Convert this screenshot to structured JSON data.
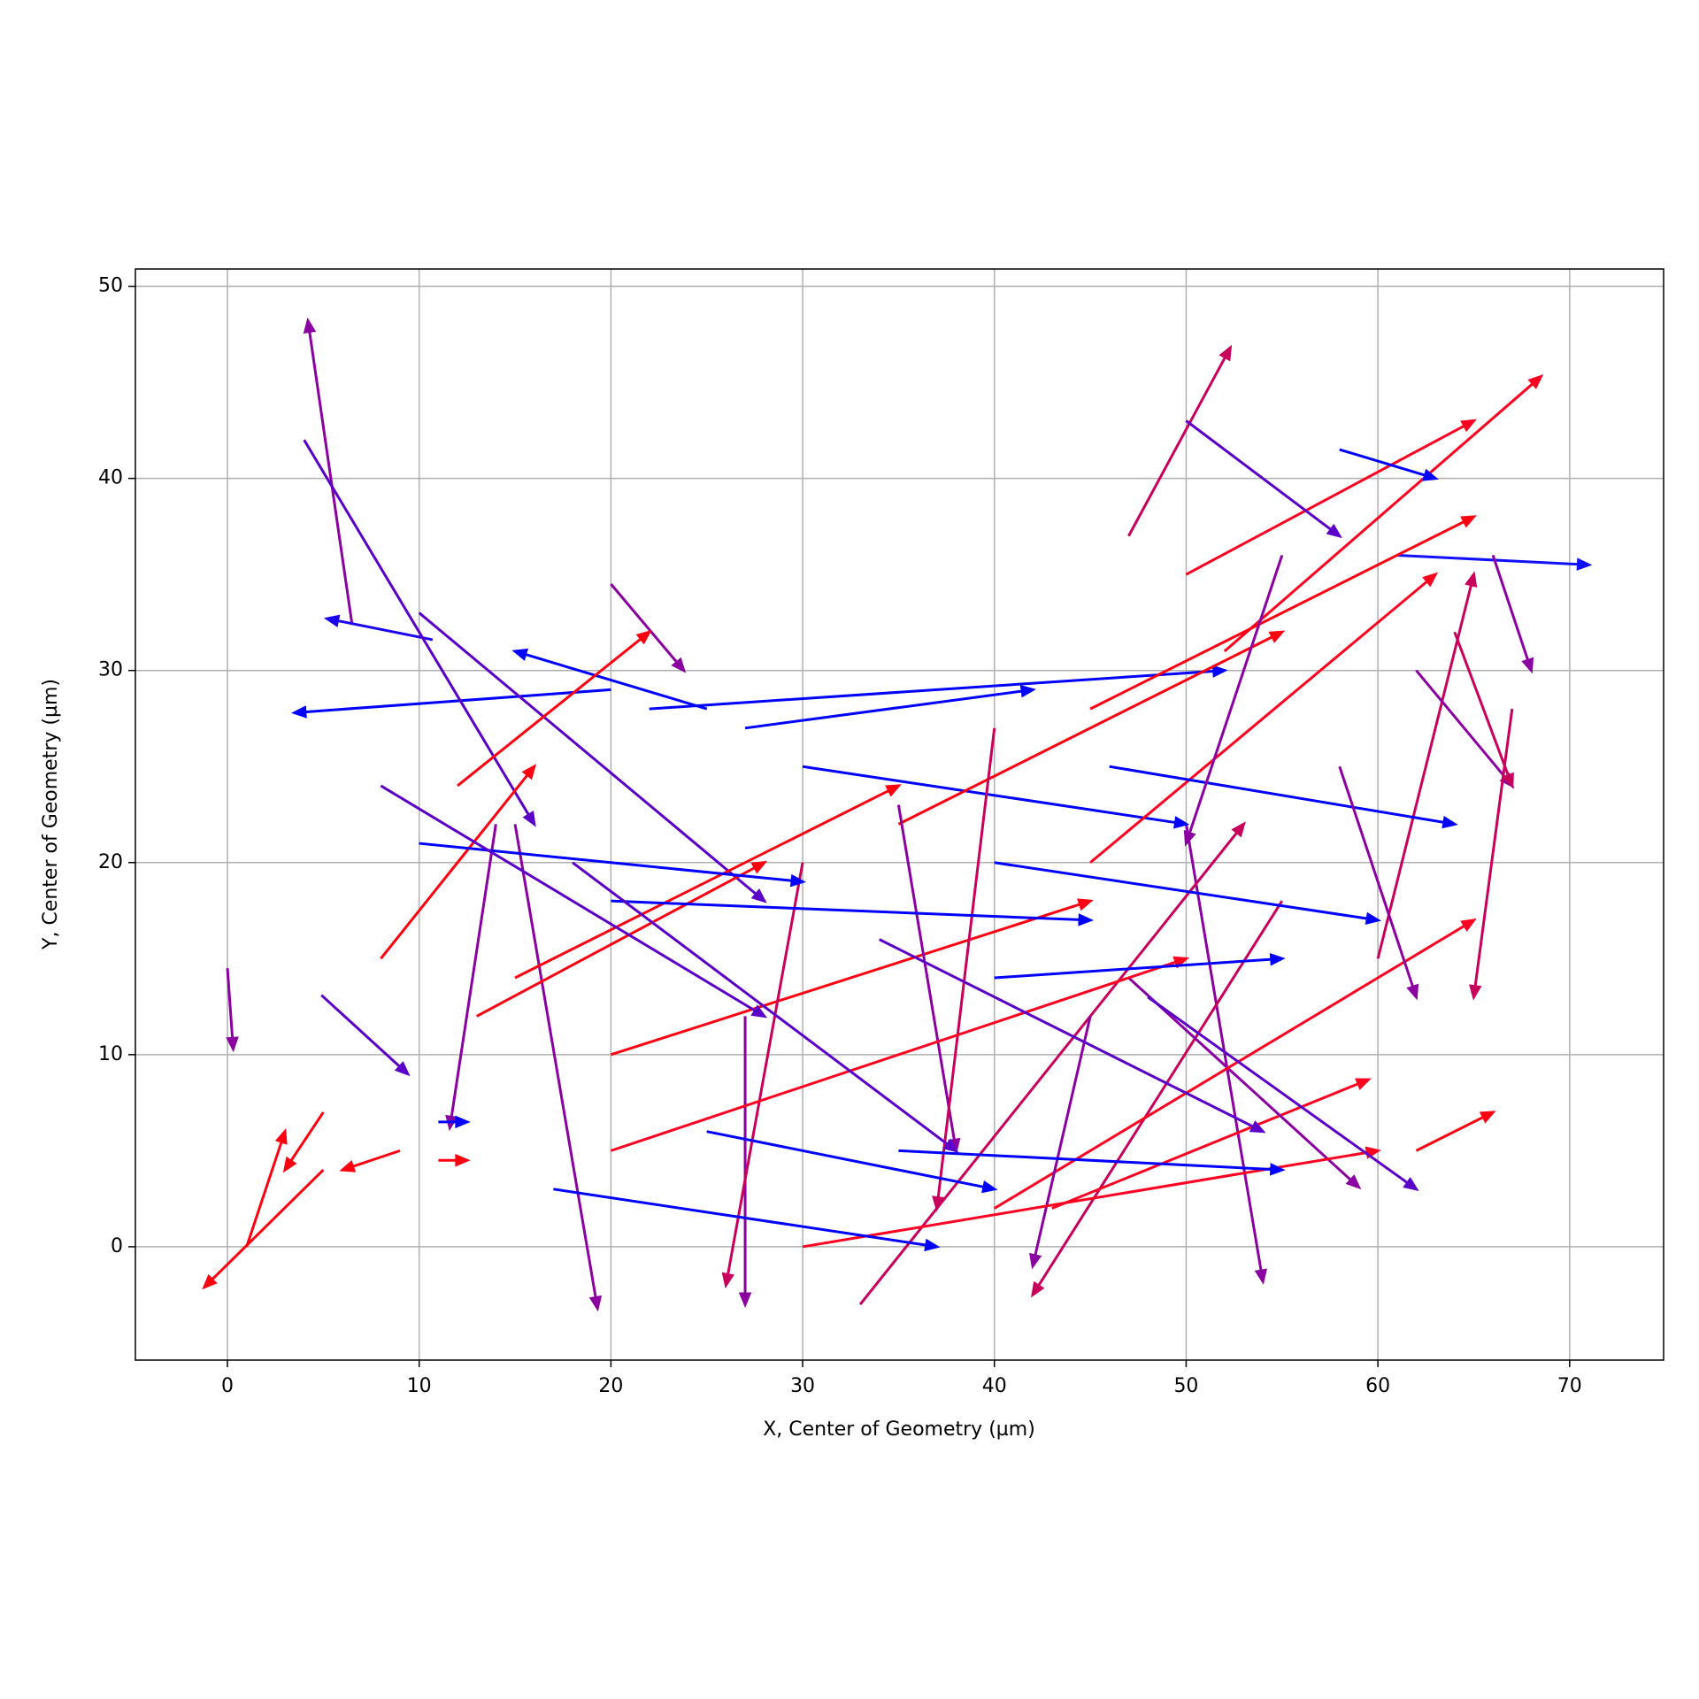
{
  "chart_data": {
    "type": "quiver",
    "x_label": "X, Center of Geometry (µm)",
    "y_label": "Y, Center of Geometry (µm)",
    "xlim": [
      -4.8,
      74.9
    ],
    "ylim": [
      -5.9,
      50.9
    ],
    "xticks": [
      0,
      10,
      20,
      30,
      40,
      50,
      60,
      70
    ],
    "yticks": [
      0,
      10,
      20,
      30,
      40,
      50
    ],
    "grid": true,
    "x": [
      6.5,
      52,
      47,
      61,
      5,
      15,
      50,
      55,
      20,
      10.7,
      4.9,
      14,
      20,
      43,
      47,
      4,
      10,
      30,
      22,
      25,
      15,
      20,
      33,
      40,
      45,
      35,
      45,
      50,
      60,
      62,
      50,
      58,
      27,
      35,
      40,
      45,
      30,
      12,
      8,
      13,
      20,
      30,
      17,
      25,
      35,
      40,
      20,
      10,
      40,
      46,
      27,
      8,
      18,
      34,
      48,
      64,
      66,
      55,
      58,
      62,
      0,
      1,
      5,
      9,
      11,
      67,
      11
    ],
    "y": [
      32.4,
      31,
      37,
      36,
      4,
      22,
      22,
      18,
      29,
      31.6,
      13.1,
      22,
      34.5,
      2,
      14,
      42,
      33,
      25,
      28,
      28,
      14,
      10,
      -3,
      2,
      20,
      22,
      28,
      35,
      15,
      30,
      43,
      41.5,
      12,
      23,
      27,
      12,
      20,
      24,
      15,
      12,
      5,
      0,
      3,
      6,
      5,
      14,
      18,
      21,
      20,
      25,
      27,
      24,
      20,
      16,
      13,
      32,
      36,
      36,
      25,
      5,
      14.5,
      0,
      7,
      5,
      4.5,
      28,
      6.5
    ],
    "u": [
      -2.3,
      16.5,
      5.3,
      10,
      -6.2,
      4.3,
      4,
      -13,
      -16.5,
      -5.5,
      4.5,
      -2.4,
      3.8,
      16.5,
      12,
      12,
      18,
      20,
      30,
      -10,
      20,
      25,
      20,
      25,
      18,
      20,
      20,
      15,
      5,
      5,
      8,
      5,
      0,
      3,
      -3,
      -3,
      -4,
      10,
      8,
      15,
      30,
      30,
      20,
      15,
      20,
      15,
      25,
      20,
      20,
      18,
      15,
      20,
      20,
      20,
      14,
      3,
      2,
      -5,
      4,
      4,
      0.3,
      2,
      -2,
      -3,
      1.5,
      -2,
      1.5
    ],
    "v": [
      15.8,
      14.3,
      9.8,
      -0.5,
      -6.1,
      -25.2,
      -23.8,
      -20.5,
      -1.2,
      1.1,
      -4.1,
      -15.8,
      -4.5,
      6.7,
      -10.9,
      -20,
      -15,
      -3,
      2,
      3,
      10,
      8,
      25,
      15,
      15,
      10,
      10,
      8,
      20,
      -6,
      -6,
      -1.5,
      -15,
      -18,
      -25,
      -13,
      -22,
      8,
      10,
      8,
      10,
      5,
      -3,
      -3,
      -1,
      1,
      -1,
      -2,
      -3,
      -3,
      2,
      -12,
      -15,
      -10,
      -10,
      -8,
      -6,
      -15,
      -12,
      2,
      -4.2,
      6,
      -3,
      -1,
      0,
      -15,
      0
    ],
    "colors": [
      "#8b00a0",
      "#ff0020",
      "#c8005c",
      "#1010ff",
      "#ff0010",
      "#8b00a0",
      "#8b00a0",
      "#c8005c",
      "#0000ff",
      "#1a00f0",
      "#5a00c8",
      "#8b00a0",
      "#8b00a0",
      "#ff0020",
      "#8b00a0",
      "#5a00c8",
      "#5a00c8",
      "#0000ff",
      "#0000ff",
      "#0000ff",
      "#ff0010",
      "#ff0010",
      "#c8005c",
      "#ff0020",
      "#ff0020",
      "#ff0010",
      "#ff0010",
      "#ff0020",
      "#c8005c",
      "#8b00a0",
      "#5a00c8",
      "#0000ff",
      "#8b00a0",
      "#8b00a0",
      "#c8005c",
      "#8b00a0",
      "#c8005c",
      "#ff0010",
      "#ff0010",
      "#ff0010",
      "#ff0020",
      "#ff0020",
      "#0000ff",
      "#0000ff",
      "#0000ff",
      "#0000ff",
      "#0000ff",
      "#0000ff",
      "#0000ff",
      "#0000ff",
      "#0000ff",
      "#5a00c8",
      "#5a00c8",
      "#5a00c8",
      "#5a00c8",
      "#c8005c",
      "#8b00a0",
      "#8b00a0",
      "#8b00a0",
      "#ff0010",
      "#8b00a0",
      "#ff0010",
      "#ff0010",
      "#ff0010",
      "#ff0010",
      "#c8005c",
      "#0000ff"
    ]
  }
}
